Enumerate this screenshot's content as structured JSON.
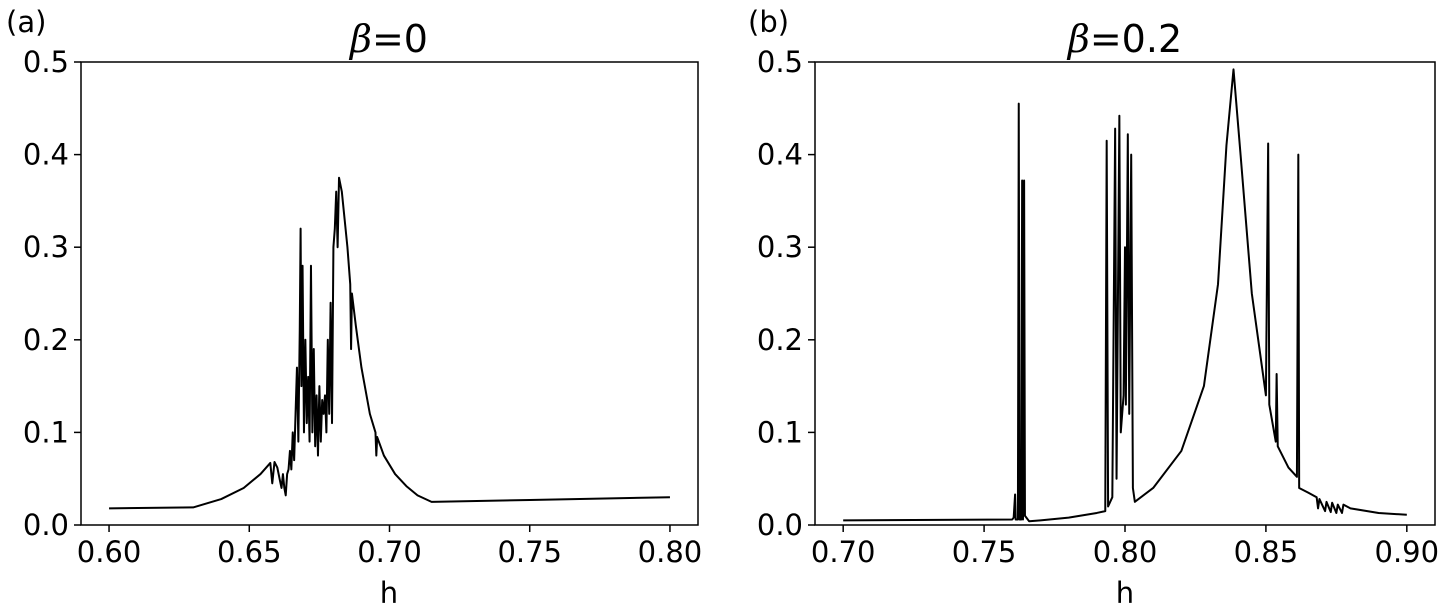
{
  "chart_data": [
    {
      "type": "line",
      "panel_label": "(a)",
      "title_symbol": "β",
      "title_value": "=0",
      "xlabel": "h",
      "ylabel": "",
      "xlim": [
        0.59,
        0.81
      ],
      "ylim": [
        0.0,
        0.5
      ],
      "xticks": [
        "0.60",
        "0.65",
        "0.70",
        "0.75",
        "0.80"
      ],
      "xtick_values": [
        0.6,
        0.65,
        0.7,
        0.75,
        0.8
      ],
      "yticks": [
        "0.0",
        "0.1",
        "0.2",
        "0.3",
        "0.4",
        "0.5"
      ],
      "ytick_values": [
        0.0,
        0.1,
        0.2,
        0.3,
        0.4,
        0.5
      ],
      "grid": false,
      "series": [
        {
          "color": "#000000",
          "points": [
            [
              0.6,
              0.018
            ],
            [
              0.63,
              0.019
            ],
            [
              0.64,
              0.028
            ],
            [
              0.648,
              0.04
            ],
            [
              0.654,
              0.055
            ],
            [
              0.6575,
              0.067
            ],
            [
              0.6582,
              0.045
            ],
            [
              0.659,
              0.068
            ],
            [
              0.66,
              0.062
            ],
            [
              0.661,
              0.047
            ],
            [
              0.6615,
              0.04
            ],
            [
              0.662,
              0.055
            ],
            [
              0.6625,
              0.04
            ],
            [
              0.663,
              0.032
            ],
            [
              0.6635,
              0.055
            ],
            [
              0.664,
              0.06
            ],
            [
              0.6645,
              0.08
            ],
            [
              0.665,
              0.06
            ],
            [
              0.6655,
              0.1
            ],
            [
              0.666,
              0.07
            ],
            [
              0.6665,
              0.12
            ],
            [
              0.667,
              0.17
            ],
            [
              0.6675,
              0.09
            ],
            [
              0.668,
              0.21
            ],
            [
              0.6683,
              0.32
            ],
            [
              0.6686,
              0.15
            ],
            [
              0.669,
              0.28
            ],
            [
              0.6695,
              0.1
            ],
            [
              0.67,
              0.2
            ],
            [
              0.6705,
              0.11
            ],
            [
              0.671,
              0.16
            ],
            [
              0.6715,
              0.09
            ],
            [
              0.672,
              0.28
            ],
            [
              0.6725,
              0.1
            ],
            [
              0.673,
              0.19
            ],
            [
              0.6735,
              0.085
            ],
            [
              0.674,
              0.14
            ],
            [
              0.6745,
              0.075
            ],
            [
              0.675,
              0.15
            ],
            [
              0.6755,
              0.09
            ],
            [
              0.676,
              0.135
            ],
            [
              0.6765,
              0.12
            ],
            [
              0.677,
              0.14
            ],
            [
              0.6775,
              0.1
            ],
            [
              0.678,
              0.2
            ],
            [
              0.6785,
              0.12
            ],
            [
              0.679,
              0.24
            ],
            [
              0.6795,
              0.11
            ],
            [
              0.68,
              0.3
            ],
            [
              0.6805,
              0.32
            ],
            [
              0.681,
              0.36
            ],
            [
              0.6815,
              0.3
            ],
            [
              0.682,
              0.375
            ],
            [
              0.683,
              0.36
            ],
            [
              0.684,
              0.33
            ],
            [
              0.685,
              0.3
            ],
            [
              0.686,
              0.26
            ],
            [
              0.6863,
              0.19
            ],
            [
              0.6866,
              0.25
            ],
            [
              0.687,
              0.24
            ],
            [
              0.688,
              0.215
            ],
            [
              0.69,
              0.17
            ],
            [
              0.693,
              0.12
            ],
            [
              0.695,
              0.1
            ],
            [
              0.6953,
              0.075
            ],
            [
              0.6956,
              0.095
            ],
            [
              0.698,
              0.075
            ],
            [
              0.702,
              0.055
            ],
            [
              0.706,
              0.042
            ],
            [
              0.71,
              0.032
            ],
            [
              0.715,
              0.025
            ],
            [
              0.75,
              0.027
            ],
            [
              0.8,
              0.03
            ]
          ]
        }
      ]
    },
    {
      "type": "line",
      "panel_label": "(b)",
      "title_symbol": "β",
      "title_value": "=0.2",
      "xlabel": "h",
      "ylabel": "",
      "xlim": [
        0.69,
        0.91
      ],
      "ylim": [
        0.0,
        0.5
      ],
      "xticks": [
        "0.70",
        "0.75",
        "0.80",
        "0.85",
        "0.90"
      ],
      "xtick_values": [
        0.7,
        0.75,
        0.8,
        0.85,
        0.9
      ],
      "yticks": [
        "0.0",
        "0.1",
        "0.2",
        "0.3",
        "0.4",
        "0.5"
      ],
      "ytick_values": [
        0.0,
        0.1,
        0.2,
        0.3,
        0.4,
        0.5
      ],
      "grid": false,
      "series": [
        {
          "color": "#000000",
          "points": [
            [
              0.7,
              0.005
            ],
            [
              0.76,
              0.006
            ],
            [
              0.7605,
              0.008
            ],
            [
              0.761,
              0.033
            ],
            [
              0.7612,
              0.006
            ],
            [
              0.762,
              0.006
            ],
            [
              0.7623,
              0.455
            ],
            [
              0.7626,
              0.006
            ],
            [
              0.7632,
              0.006
            ],
            [
              0.7635,
              0.372
            ],
            [
              0.7638,
              0.006
            ],
            [
              0.7642,
              0.372
            ],
            [
              0.7645,
              0.01
            ],
            [
              0.766,
              0.004
            ],
            [
              0.77,
              0.005
            ],
            [
              0.78,
              0.008
            ],
            [
              0.79,
              0.013
            ],
            [
              0.793,
              0.015
            ],
            [
              0.7935,
              0.415
            ],
            [
              0.794,
              0.02
            ],
            [
              0.7955,
              0.03
            ],
            [
              0.7965,
              0.428
            ],
            [
              0.797,
              0.05
            ],
            [
              0.798,
              0.442
            ],
            [
              0.7985,
              0.1
            ],
            [
              0.7995,
              0.14
            ],
            [
              0.8,
              0.3
            ],
            [
              0.8003,
              0.13
            ],
            [
              0.801,
              0.422
            ],
            [
              0.8015,
              0.12
            ],
            [
              0.8022,
              0.4
            ],
            [
              0.8028,
              0.04
            ],
            [
              0.8035,
              0.025
            ],
            [
              0.81,
              0.04
            ],
            [
              0.82,
              0.08
            ],
            [
              0.828,
              0.15
            ],
            [
              0.833,
              0.26
            ],
            [
              0.836,
              0.41
            ],
            [
              0.8385,
              0.492
            ],
            [
              0.841,
              0.4
            ],
            [
              0.845,
              0.25
            ],
            [
              0.85,
              0.14
            ],
            [
              0.8508,
              0.412
            ],
            [
              0.8512,
              0.13
            ],
            [
              0.8535,
              0.09
            ],
            [
              0.8538,
              0.163
            ],
            [
              0.8542,
              0.085
            ],
            [
              0.858,
              0.062
            ],
            [
              0.861,
              0.052
            ],
            [
              0.8615,
              0.4
            ],
            [
              0.8618,
              0.04
            ],
            [
              0.865,
              0.035
            ],
            [
              0.868,
              0.03
            ],
            [
              0.8685,
              0.018
            ],
            [
              0.869,
              0.028
            ],
            [
              0.871,
              0.015
            ],
            [
              0.8715,
              0.025
            ],
            [
              0.873,
              0.014
            ],
            [
              0.8735,
              0.024
            ],
            [
              0.875,
              0.013
            ],
            [
              0.8755,
              0.022
            ],
            [
              0.877,
              0.013
            ],
            [
              0.8775,
              0.022
            ],
            [
              0.88,
              0.018
            ],
            [
              0.89,
              0.013
            ],
            [
              0.9,
              0.011
            ]
          ]
        }
      ]
    }
  ]
}
